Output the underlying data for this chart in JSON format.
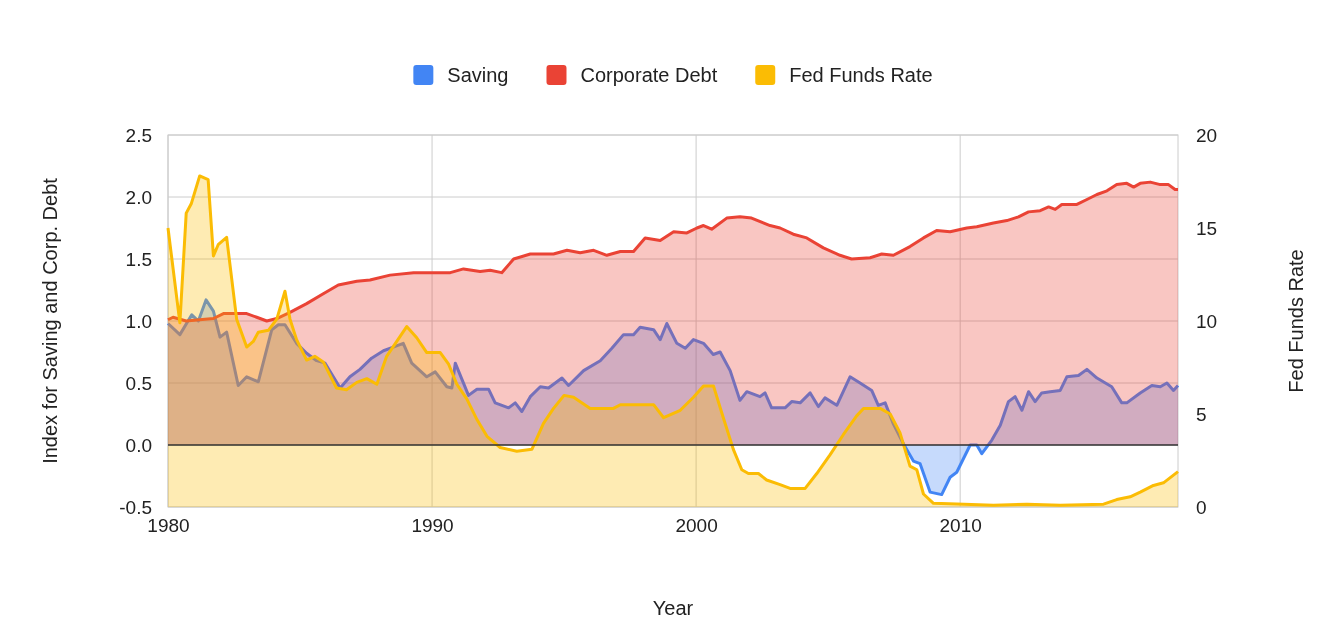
{
  "chart_data": {
    "type": "area",
    "xlabel": "Year",
    "ylabel": "Index for Saving and Corp. Debt",
    "y2label": "Fed Funds Rate",
    "xlim": [
      1980,
      2018.25
    ],
    "xticks": [
      1980,
      1990,
      2000,
      2010
    ],
    "ylim": [
      -0.5,
      2.5
    ],
    "yticks": [
      {
        "value": -0.5,
        "label": "-0.5"
      },
      {
        "value": 0,
        "label": "0.0"
      },
      {
        "value": 0.5,
        "label": "0.5"
      },
      {
        "value": 1,
        "label": "1.0"
      },
      {
        "value": 1.5,
        "label": "1.5"
      },
      {
        "value": 2,
        "label": "2.0"
      },
      {
        "value": 2.5,
        "label": "2.5"
      }
    ],
    "y2lim": [
      0,
      20
    ],
    "y2ticks": [
      0,
      5,
      10,
      15,
      20
    ],
    "grid": true,
    "legend": "top",
    "series": [
      {
        "name": "Saving",
        "color": "#4285f4",
        "x": [
          1980,
          1980.45,
          1980.9,
          1981.15,
          1981.44,
          1981.72,
          1981.97,
          1982.22,
          1982.66,
          1982.98,
          1983.42,
          1983.93,
          1984.18,
          1984.43,
          1984.87,
          1985.25,
          1985.63,
          1985.95,
          1986.52,
          1986.89,
          1987.27,
          1987.71,
          1988.16,
          1988.53,
          1988.91,
          1989.23,
          1989.8,
          1990.12,
          1990.56,
          1990.75,
          1990.88,
          1991.38,
          1991.7,
          1992.14,
          1992.39,
          1992.9,
          1993.15,
          1993.4,
          1993.72,
          1994.1,
          1994.41,
          1994.92,
          1995.17,
          1995.74,
          1996.37,
          1996.81,
          1997.25,
          1997.63,
          1997.88,
          1998.39,
          1998.64,
          1998.89,
          1999.27,
          1999.59,
          1999.9,
          2000.28,
          2000.65,
          2000.91,
          2001.29,
          2001.66,
          2001.92,
          2002.42,
          2002.61,
          2002.86,
          2003.37,
          2003.62,
          2003.94,
          2004.32,
          2004.63,
          2004.88,
          2005.33,
          2005.83,
          2006.21,
          2006.65,
          2006.9,
          2007.16,
          2007.47,
          2007.85,
          2008.23,
          2008.48,
          2008.86,
          2009.3,
          2009.62,
          2009.87,
          2010.38,
          2010.63,
          2010.82,
          2011.2,
          2011.52,
          2011.83,
          2012.08,
          2012.34,
          2012.59,
          2012.84,
          2013.09,
          2013.41,
          2013.79,
          2014.04,
          2014.48,
          2014.8,
          2015.18,
          2015.74,
          2016.12,
          2016.31,
          2016.82,
          2017.26,
          2017.58,
          2017.83,
          2018.08,
          2018.25
        ],
        "values": [
          0.98,
          0.89,
          1.05,
          1.0,
          1.17,
          1.08,
          0.87,
          0.91,
          0.48,
          0.55,
          0.51,
          0.93,
          0.97,
          0.97,
          0.82,
          0.74,
          0.68,
          0.66,
          0.46,
          0.55,
          0.61,
          0.7,
          0.76,
          0.79,
          0.82,
          0.66,
          0.55,
          0.59,
          0.47,
          0.46,
          0.66,
          0.4,
          0.45,
          0.45,
          0.34,
          0.3,
          0.34,
          0.27,
          0.39,
          0.47,
          0.46,
          0.54,
          0.48,
          0.6,
          0.68,
          0.78,
          0.89,
          0.89,
          0.95,
          0.93,
          0.85,
          0.98,
          0.82,
          0.78,
          0.85,
          0.82,
          0.73,
          0.75,
          0.6,
          0.36,
          0.43,
          0.39,
          0.42,
          0.3,
          0.3,
          0.35,
          0.34,
          0.42,
          0.31,
          0.38,
          0.32,
          0.55,
          0.5,
          0.44,
          0.32,
          0.34,
          0.17,
          0.01,
          -0.13,
          -0.15,
          -0.38,
          -0.4,
          -0.26,
          -0.22,
          0.0,
          0.0,
          -0.07,
          0.04,
          0.16,
          0.35,
          0.39,
          0.28,
          0.43,
          0.35,
          0.42,
          0.43,
          0.44,
          0.55,
          0.56,
          0.61,
          0.54,
          0.47,
          0.34,
          0.34,
          0.42,
          0.48,
          0.47,
          0.5,
          0.44,
          0.48
        ]
      },
      {
        "name": "Corporate Debt",
        "color": "#ea4335",
        "x": [
          1980,
          1980.19,
          1980.69,
          1981.2,
          1981.72,
          1982.1,
          1982.98,
          1983.36,
          1983.74,
          1984.12,
          1984.62,
          1985.25,
          1985.88,
          1986.45,
          1987.15,
          1987.65,
          1988.41,
          1989.3,
          1989.93,
          1990.69,
          1991.19,
          1991.82,
          1992.2,
          1992.64,
          1993.09,
          1993.72,
          1994.6,
          1995.11,
          1995.61,
          1996.12,
          1996.62,
          1997.13,
          1997.63,
          1998.07,
          1998.64,
          1999.15,
          1999.65,
          2000.03,
          2000.28,
          2000.59,
          2001.16,
          2001.66,
          2002.1,
          2002.8,
          2003.18,
          2003.68,
          2004.19,
          2004.82,
          2005.45,
          2005.89,
          2006.59,
          2007.03,
          2007.47,
          2008.1,
          2008.61,
          2009.11,
          2009.62,
          2010.25,
          2010.63,
          2011.26,
          2011.77,
          2012.21,
          2012.59,
          2013.03,
          2013.35,
          2013.6,
          2013.85,
          2014.42,
          2014.8,
          2015.18,
          2015.56,
          2015.93,
          2016.31,
          2016.57,
          2016.82,
          2017.2,
          2017.58,
          2017.89,
          2018.14,
          2018.25
        ],
        "values": [
          1.01,
          1.03,
          1.0,
          1.01,
          1.02,
          1.06,
          1.06,
          1.03,
          1.0,
          1.02,
          1.07,
          1.14,
          1.22,
          1.29,
          1.32,
          1.33,
          1.37,
          1.39,
          1.39,
          1.39,
          1.42,
          1.4,
          1.41,
          1.39,
          1.5,
          1.54,
          1.54,
          1.57,
          1.55,
          1.57,
          1.53,
          1.56,
          1.56,
          1.67,
          1.65,
          1.72,
          1.71,
          1.75,
          1.77,
          1.74,
          1.83,
          1.84,
          1.83,
          1.77,
          1.75,
          1.7,
          1.67,
          1.59,
          1.53,
          1.5,
          1.51,
          1.54,
          1.53,
          1.6,
          1.67,
          1.73,
          1.72,
          1.75,
          1.76,
          1.79,
          1.81,
          1.84,
          1.88,
          1.89,
          1.92,
          1.9,
          1.94,
          1.94,
          1.98,
          2.02,
          2.05,
          2.1,
          2.11,
          2.08,
          2.11,
          2.12,
          2.1,
          2.1,
          2.06,
          2.06
        ]
      },
      {
        "name": "Fed Funds Rate",
        "color": "#fbbc04",
        "axis": "y2",
        "x": [
          1980,
          1980.45,
          1980.69,
          1980.88,
          1981.2,
          1981.52,
          1981.72,
          1981.9,
          1982.22,
          1982.6,
          1982.98,
          1983.23,
          1983.42,
          1983.8,
          1984.12,
          1984.43,
          1984.62,
          1984.87,
          1985.25,
          1985.56,
          1985.88,
          1986.38,
          1986.76,
          1987.15,
          1987.53,
          1987.91,
          1988.28,
          1989.04,
          1989.42,
          1989.8,
          1990.31,
          1990.62,
          1990.94,
          1991.32,
          1991.7,
          1992.08,
          1992.58,
          1993.21,
          1993.78,
          1994.22,
          1994.6,
          1995.0,
          1995.36,
          1995.99,
          1996.87,
          1997.13,
          1998.39,
          1998.77,
          1999.4,
          1999.9,
          2000.28,
          2000.66,
          2001.03,
          2001.41,
          2001.73,
          2001.98,
          2002.36,
          2002.67,
          2003.18,
          2003.56,
          2004.13,
          2004.57,
          2005.07,
          2005.58,
          2006.08,
          2006.34,
          2006.97,
          2007.35,
          2007.72,
          2008.1,
          2008.36,
          2008.61,
          2008.99,
          2009.87,
          2011.26,
          2012.53,
          2013.79,
          2015.43,
          2015.93,
          2016.44,
          2016.82,
          2017.32,
          2017.7,
          2018.25
        ],
        "values": [
          15.0,
          9.9,
          15.8,
          16.3,
          17.8,
          17.6,
          13.5,
          14.1,
          14.5,
          10.1,
          8.6,
          8.9,
          9.4,
          9.5,
          10.1,
          11.6,
          10.1,
          9.0,
          7.9,
          8.1,
          7.8,
          6.4,
          6.3,
          6.7,
          6.9,
          6.6,
          8.1,
          9.7,
          9.1,
          8.3,
          8.3,
          7.7,
          6.6,
          5.8,
          4.7,
          3.8,
          3.2,
          3.0,
          3.1,
          4.5,
          5.3,
          6.0,
          5.9,
          5.3,
          5.3,
          5.5,
          5.5,
          4.8,
          5.2,
          5.9,
          6.5,
          6.5,
          4.8,
          3.1,
          2.0,
          1.8,
          1.8,
          1.45,
          1.2,
          1.0,
          1.0,
          1.8,
          2.8,
          3.9,
          4.9,
          5.3,
          5.3,
          5.0,
          4.0,
          2.2,
          2.0,
          0.7,
          0.2,
          0.16,
          0.1,
          0.15,
          0.1,
          0.15,
          0.4,
          0.55,
          0.8,
          1.16,
          1.3,
          1.9
        ]
      }
    ]
  }
}
